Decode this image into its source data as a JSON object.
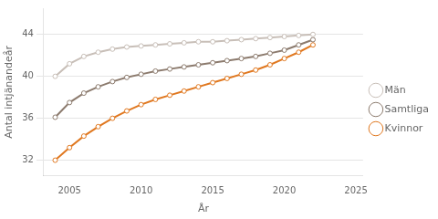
{
  "chart_data": {
    "type": "line",
    "x": [
      2004,
      2005,
      2006,
      2007,
      2008,
      2009,
      2010,
      2011,
      2012,
      2013,
      2014,
      2015,
      2016,
      2017,
      2018,
      2019,
      2020,
      2021,
      2022
    ],
    "series": [
      {
        "name": "Män",
        "color": "#c8bfb8",
        "values": [
          40.0,
          41.2,
          41.9,
          42.3,
          42.6,
          42.8,
          42.9,
          43.0,
          43.1,
          43.2,
          43.3,
          43.3,
          43.4,
          43.5,
          43.6,
          43.7,
          43.8,
          43.9,
          44.0
        ]
      },
      {
        "name": "Samtliga",
        "color": "#8c7b6e",
        "values": [
          36.1,
          37.5,
          38.4,
          39.0,
          39.5,
          39.9,
          40.2,
          40.5,
          40.7,
          40.9,
          41.1,
          41.3,
          41.5,
          41.7,
          41.9,
          42.2,
          42.5,
          43.0,
          43.5
        ]
      },
      {
        "name": "Kvinnor",
        "color": "#e07820",
        "values": [
          32.0,
          33.2,
          34.3,
          35.2,
          36.0,
          36.7,
          37.3,
          37.8,
          38.2,
          38.6,
          39.0,
          39.4,
          39.8,
          40.2,
          40.6,
          41.1,
          41.7,
          42.3,
          43.0
        ]
      }
    ],
    "xlabel": "År",
    "ylabel": "Antal intjänandeår",
    "xlim": [
      2003.2,
      2025.5
    ],
    "ylim": [
      30.5,
      46.5
    ],
    "xticks": [
      2005,
      2010,
      2015,
      2020,
      2025
    ],
    "yticks": [
      32,
      36,
      40,
      44
    ],
    "grid": "y",
    "legend": "right",
    "marker": "circle"
  }
}
